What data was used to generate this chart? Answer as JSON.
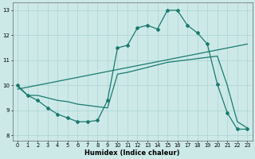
{
  "xlabel": "Humidex (Indice chaleur)",
  "ylabel": "",
  "xlim": [
    -0.5,
    23.5
  ],
  "ylim": [
    7.8,
    13.3
  ],
  "yticks": [
    8,
    9,
    10,
    11,
    12,
    13
  ],
  "xticks": [
    0,
    1,
    2,
    3,
    4,
    5,
    6,
    7,
    8,
    9,
    10,
    11,
    12,
    13,
    14,
    15,
    16,
    17,
    18,
    19,
    20,
    21,
    22,
    23
  ],
  "bg_color": "#cce9e8",
  "grid_color": "#aad4d2",
  "line_color": "#1a7a6e",
  "line1_x": [
    0,
    1,
    2,
    3,
    4,
    5,
    6,
    7,
    8,
    9,
    10,
    11,
    12,
    13,
    14,
    15,
    16,
    17,
    18,
    19,
    20,
    21,
    22,
    23
  ],
  "line1_y": [
    10.0,
    9.6,
    9.4,
    9.1,
    8.85,
    8.7,
    8.55,
    8.55,
    8.6,
    9.4,
    11.5,
    11.6,
    12.3,
    12.4,
    12.25,
    13.0,
    13.0,
    12.4,
    12.1,
    11.65,
    10.05,
    8.9,
    8.25,
    8.25
  ],
  "line2_x": [
    0,
    1,
    2,
    3,
    4,
    5,
    6,
    7,
    8,
    9,
    10,
    11,
    12,
    13,
    14,
    15,
    16,
    17,
    18,
    19,
    20,
    21,
    22,
    23
  ],
  "line2_y": [
    9.95,
    9.6,
    9.6,
    9.5,
    9.4,
    9.35,
    9.25,
    9.2,
    9.15,
    9.1,
    10.45,
    10.52,
    10.62,
    10.72,
    10.82,
    10.92,
    10.97,
    11.02,
    11.07,
    11.12,
    11.17,
    10.0,
    8.55,
    8.3
  ],
  "line3_x": [
    0,
    23
  ],
  "line3_y": [
    9.85,
    11.65
  ]
}
